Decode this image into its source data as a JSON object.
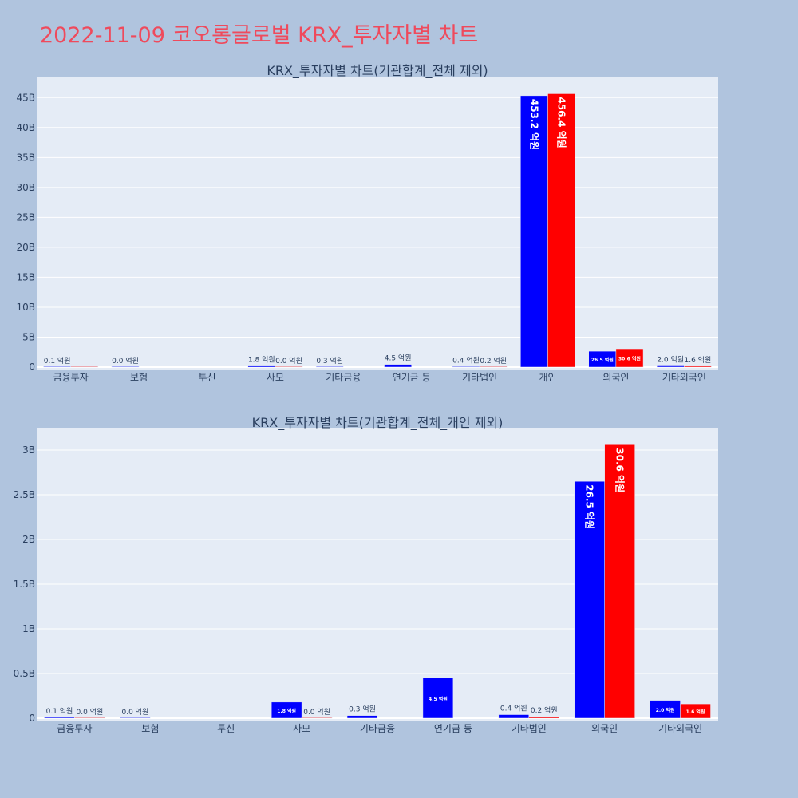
{
  "title": "2022-11-09 코오롱글로벌 KRX_투자자별 차트",
  "colors": {
    "background": "#b0c4de",
    "plot_bg": "#e5ecf6",
    "title": "#ef4a5c",
    "series_1": "#0000ff",
    "series_2": "#ff0000"
  },
  "chart_data": [
    {
      "type": "bar",
      "title": "KRX_투자자별 차트(기관합계_전체 제외)",
      "categories": [
        "금융투자",
        "보험",
        "투신",
        "사모",
        "기타금융",
        "연기금 등",
        "기타법인",
        "개인",
        "외국인",
        "기타외국인"
      ],
      "series": [
        {
          "values": [
            10000000,
            2000000,
            null,
            180000000,
            30000000,
            450000000,
            40000000,
            45320000000,
            2650000000,
            200000000
          ],
          "labels": [
            "0.1 억원",
            "0.0 억원",
            "",
            "1.8 억원",
            "0.3 억원",
            "4.5 억원",
            "0.4 억원",
            "453.2 억원",
            "26.5 억원",
            "2.0 억원"
          ]
        },
        {
          "values": [
            2000000,
            null,
            null,
            2000000,
            null,
            null,
            20000000,
            45640000000,
            3060000000,
            160000000
          ],
          "labels": [
            "",
            "",
            "",
            "0.0 억원",
            "",
            "",
            "0.2 억원",
            "456.4 억원",
            "30.6 억원",
            "1.6 억원"
          ]
        }
      ],
      "yticks": [
        "0",
        "5B",
        "10B",
        "15B",
        "20B",
        "25B",
        "30B",
        "35B",
        "40B",
        "45B"
      ],
      "ytick_values": [
        0,
        5000000000,
        10000000000,
        15000000000,
        20000000000,
        25000000000,
        30000000000,
        35000000000,
        40000000000,
        45000000000
      ],
      "ylim": [
        0,
        48500000000
      ],
      "grid": true
    },
    {
      "type": "bar",
      "title": "KRX_투자자별 차트(기관합계_전체_개인 제외)",
      "categories": [
        "금융투자",
        "보험",
        "투신",
        "사모",
        "기타금융",
        "연기금 등",
        "기타법인",
        "외국인",
        "기타외국인"
      ],
      "series": [
        {
          "values": [
            10000000,
            2000000,
            null,
            180000000,
            30000000,
            450000000,
            40000000,
            2650000000,
            200000000
          ],
          "labels": [
            "0.1 억원",
            "0.0 억원",
            "",
            "1.8 억원",
            "0.3 억원",
            "4.5 억원",
            "0.4 억원",
            "26.5 억원",
            "2.0 억원"
          ]
        },
        {
          "values": [
            2000000,
            null,
            null,
            2000000,
            null,
            null,
            20000000,
            3060000000,
            160000000
          ],
          "labels": [
            "0.0 억원",
            "",
            "",
            "0.0 억원",
            "",
            "",
            "0.2 억원",
            "30.6 억원",
            "1.6 억원"
          ]
        }
      ],
      "yticks": [
        "0",
        "0.5B",
        "1B",
        "1.5B",
        "2B",
        "2.5B",
        "3B"
      ],
      "ytick_values": [
        0,
        500000000,
        1000000000,
        1500000000,
        2000000000,
        2500000000,
        3000000000
      ],
      "ylim": [
        0,
        3250000000
      ],
      "grid": true
    }
  ]
}
